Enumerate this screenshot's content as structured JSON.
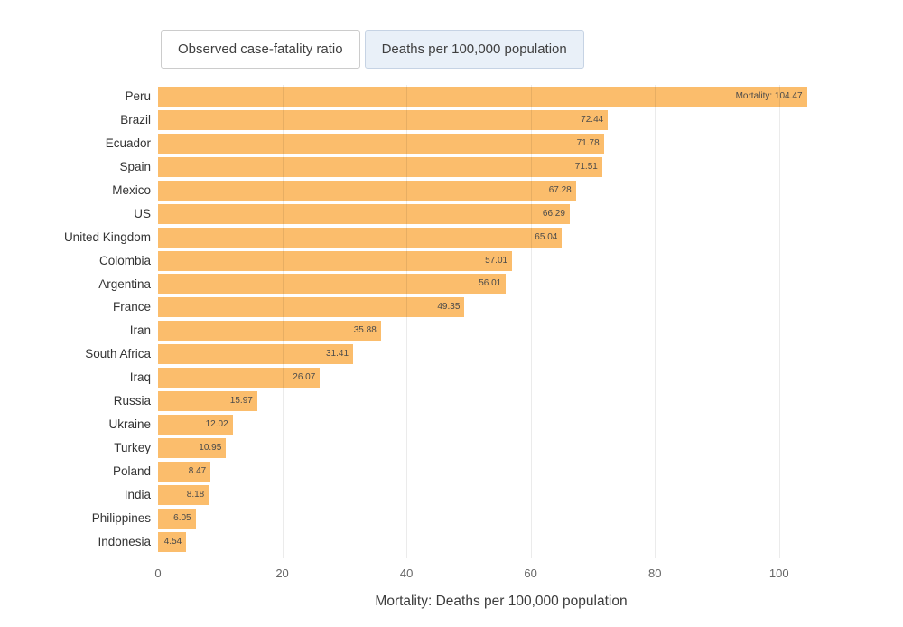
{
  "toolbar": {
    "buttons": [
      {
        "label": "Observed case-fatality ratio",
        "active": false
      },
      {
        "label": "Deaths per 100,000 population",
        "active": true
      }
    ]
  },
  "chart_data": {
    "type": "bar",
    "orientation": "horizontal",
    "title": "",
    "xlabel": "Mortality: Deaths per 100,000 population",
    "ylabel": "",
    "categories": [
      "Peru",
      "Brazil",
      "Ecuador",
      "Spain",
      "Mexico",
      "US",
      "United Kingdom",
      "Colombia",
      "Argentina",
      "France",
      "Iran",
      "South Africa",
      "Iraq",
      "Russia",
      "Ukraine",
      "Turkey",
      "Poland",
      "India",
      "Philippines",
      "Indonesia"
    ],
    "values": [
      104.47,
      72.44,
      71.78,
      71.51,
      67.28,
      66.29,
      65.04,
      57.01,
      56.01,
      49.35,
      35.88,
      31.41,
      26.07,
      15.97,
      12.02,
      10.95,
      8.47,
      8.18,
      6.05,
      4.54
    ],
    "bar_labels": [
      "Mortality: 104.47",
      "72.44",
      "71.78",
      "71.51",
      "67.28",
      "66.29",
      "65.04",
      "57.01",
      "56.01",
      "49.35",
      "35.88",
      "31.41",
      "26.07",
      "15.97",
      "12.02",
      "10.95",
      "8.47",
      "8.18",
      "6.05",
      "4.54"
    ],
    "x_ticks": [
      0,
      20,
      40,
      60,
      80,
      100
    ],
    "xlim": [
      0,
      110.5
    ],
    "grid": true,
    "legend": "none",
    "bar_color": "#fbbd6c",
    "grid_color": "rgba(0,0,0,0.08)"
  }
}
